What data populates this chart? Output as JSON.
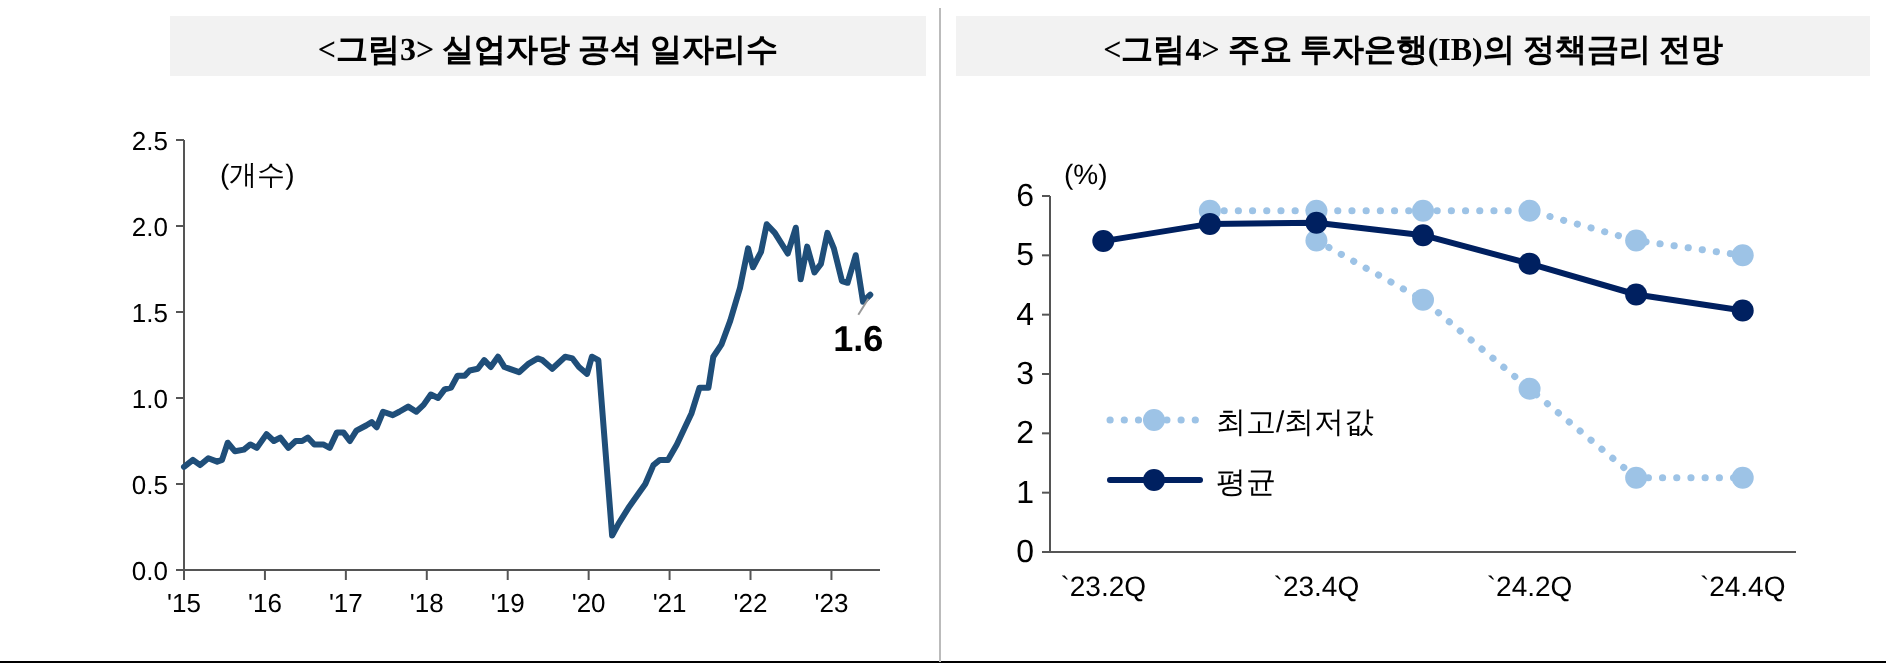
{
  "chart_data": [
    {
      "type": "line",
      "title": "<그림3> 실업자당 공석 일자리수",
      "ylabel": "(개수)",
      "x": [
        2015.0,
        2015.11,
        2015.2,
        2015.3,
        2015.41,
        2015.47,
        2015.54,
        2015.63,
        2015.74,
        2015.82,
        2015.9,
        2016.02,
        2016.11,
        2016.19,
        2016.29,
        2016.38,
        2016.46,
        2016.53,
        2016.61,
        2016.72,
        2016.8,
        2016.89,
        2016.97,
        2017.05,
        2017.13,
        2017.25,
        2017.32,
        2017.38,
        2017.46,
        2017.58,
        2017.66,
        2017.77,
        2017.87,
        2017.96,
        2018.05,
        2018.14,
        2018.22,
        2018.3,
        2018.38,
        2018.47,
        2018.53,
        2018.63,
        2018.71,
        2018.79,
        2018.88,
        2018.96,
        2019.14,
        2019.26,
        2019.37,
        2019.43,
        2019.55,
        2019.71,
        2019.8,
        2019.88,
        2019.98,
        2020.04,
        2020.12,
        2020.29,
        2020.37,
        2020.49,
        2020.61,
        2020.7,
        2020.8,
        2020.88,
        2020.98,
        2021.09,
        2021.19,
        2021.27,
        2021.37,
        2021.48,
        2021.54,
        2021.64,
        2021.75,
        2021.87,
        2021.97,
        2022.03,
        2022.13,
        2022.2,
        2022.3,
        2022.46,
        2022.56,
        2022.62,
        2022.7,
        2022.79,
        2022.87,
        2022.95,
        2023.03,
        2023.13,
        2023.2,
        2023.3,
        2023.39,
        2023.48
      ],
      "series": [
        {
          "color": "#1f4e79",
          "values": [
            0.6,
            0.64,
            0.61,
            0.65,
            0.63,
            0.64,
            0.74,
            0.69,
            0.7,
            0.73,
            0.71,
            0.79,
            0.75,
            0.77,
            0.71,
            0.75,
            0.75,
            0.77,
            0.73,
            0.73,
            0.71,
            0.8,
            0.8,
            0.75,
            0.81,
            0.84,
            0.86,
            0.83,
            0.92,
            0.9,
            0.92,
            0.95,
            0.92,
            0.96,
            1.02,
            1.0,
            1.05,
            1.06,
            1.13,
            1.13,
            1.16,
            1.17,
            1.22,
            1.18,
            1.24,
            1.18,
            1.15,
            1.2,
            1.23,
            1.22,
            1.17,
            1.24,
            1.23,
            1.18,
            1.14,
            1.24,
            1.22,
            0.2,
            0.27,
            0.36,
            0.44,
            0.5,
            0.61,
            0.64,
            0.64,
            0.73,
            0.83,
            0.91,
            1.06,
            1.06,
            1.24,
            1.31,
            1.45,
            1.64,
            1.87,
            1.76,
            1.85,
            2.01,
            1.96,
            1.84,
            1.99,
            1.69,
            1.88,
            1.73,
            1.78,
            1.96,
            1.87,
            1.68,
            1.67,
            1.83,
            1.56,
            1.6
          ]
        }
      ],
      "xlim": [
        2015,
        2023.6
      ],
      "xticks": [
        {
          "value": 2015,
          "label": "'15"
        },
        {
          "value": 2016,
          "label": "'16"
        },
        {
          "value": 2017,
          "label": "'17"
        },
        {
          "value": 2018,
          "label": "'18"
        },
        {
          "value": 2019,
          "label": "'19"
        },
        {
          "value": 2020,
          "label": "'20"
        },
        {
          "value": 2021,
          "label": "'21"
        },
        {
          "value": 2022,
          "label": "'22"
        },
        {
          "value": 2023,
          "label": "'23"
        }
      ],
      "ylim": [
        0,
        2.5
      ],
      "yticks": [
        {
          "value": 0,
          "label": "0.0"
        },
        0.5,
        {
          "value": 1,
          "label": "1.0"
        },
        1.5,
        {
          "value": 2,
          "label": "2.0"
        },
        2.5
      ],
      "annotations": [
        {
          "text": "1.6",
          "x": 2023.48,
          "y": 1.6
        }
      ]
    },
    {
      "type": "line",
      "title": "<그림4> 주요 투자은행(IB)의 정책금리 전망",
      "ylabel": "(%)",
      "categories": [
        "`23.2Q",
        null,
        "`23.4Q",
        null,
        "`24.2Q",
        null,
        "`24.4Q"
      ],
      "series": [
        {
          "name": "최고/최저값",
          "color": "#9dc3e6",
          "line_style": "dotted",
          "values": [
            null,
            5.75,
            5.75,
            5.75,
            5.75,
            5.25,
            5.0
          ]
        },
        {
          "color": "#9dc3e6",
          "line_style": "dotted",
          "values": [
            null,
            null,
            5.25,
            4.25,
            2.75,
            1.25,
            1.25
          ]
        },
        {
          "name": "평균",
          "color": "#002060",
          "line_style": "solid",
          "values": [
            5.24,
            5.53,
            5.55,
            5.34,
            4.86,
            4.34,
            4.07
          ]
        }
      ],
      "marker": "circle",
      "legend": "bottom left",
      "ylim": [
        0,
        6
      ],
      "yticks": [
        0,
        1,
        2,
        3,
        4,
        5,
        6
      ]
    }
  ]
}
